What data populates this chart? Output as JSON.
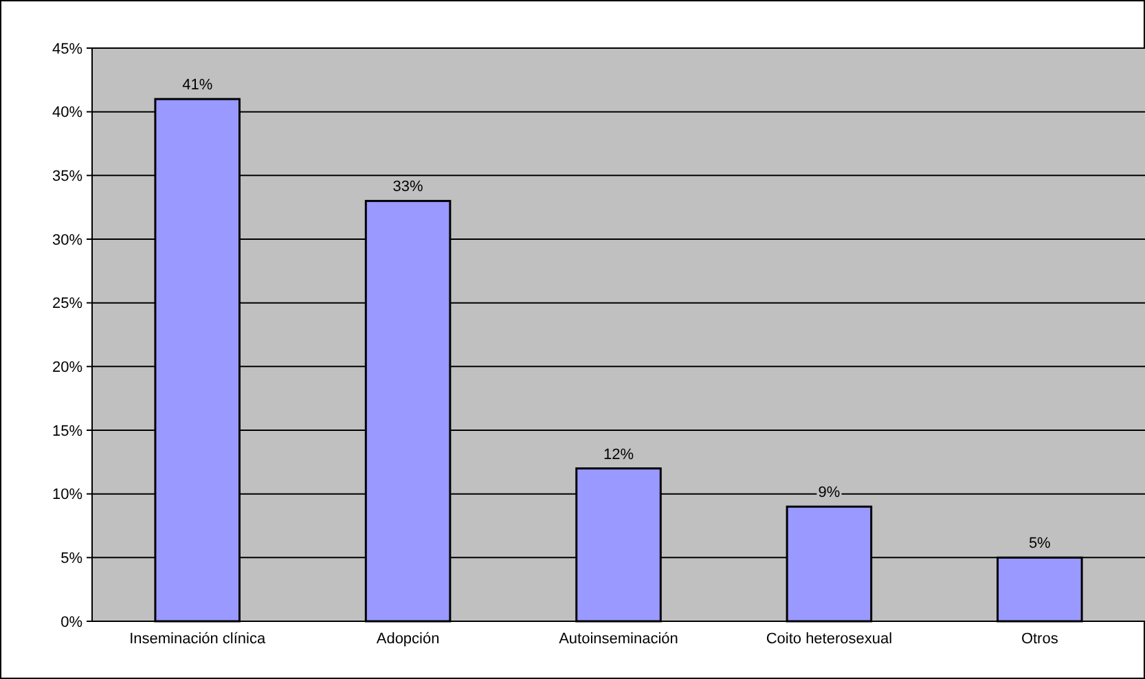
{
  "chart_data": {
    "type": "bar",
    "categories": [
      "Inseminación clínica",
      "Adopción",
      "Autoinseminación",
      "Coito heterosexual",
      "Otros"
    ],
    "values": [
      41,
      33,
      12,
      9,
      5
    ],
    "color": "#9999ff",
    "value_labels": [
      "41%",
      "33%",
      "12%",
      "9%",
      "5%"
    ],
    "ylim": [
      0,
      45
    ],
    "yticks": [
      {
        "value": 0,
        "label": "0%"
      },
      {
        "value": 5,
        "label": "5%"
      },
      {
        "value": 10,
        "label": "10%"
      },
      {
        "value": 15,
        "label": "15%"
      },
      {
        "value": 20,
        "label": "20%"
      },
      {
        "value": 25,
        "label": "25%"
      },
      {
        "value": 30,
        "label": "30%"
      },
      {
        "value": 35,
        "label": "35%"
      },
      {
        "value": 40,
        "label": "40%"
      },
      {
        "value": 45,
        "label": "45%"
      }
    ],
    "grid": "y"
  }
}
